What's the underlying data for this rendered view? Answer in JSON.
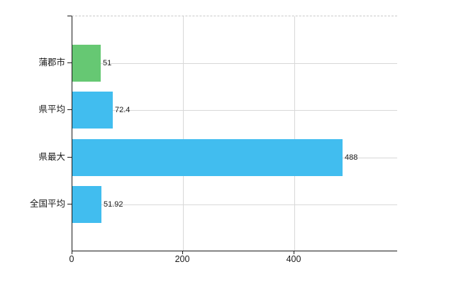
{
  "chart_data": {
    "type": "bar",
    "orientation": "horizontal",
    "title": "",
    "categories": [
      "蒲郡市",
      "県平均",
      "県最大",
      "全国平均"
    ],
    "values": [
      51,
      72.4,
      488,
      51.92
    ],
    "value_labels": [
      "51",
      "72.4",
      "488",
      "51.92"
    ],
    "bar_colors": [
      "#66c873",
      "#41bdef",
      "#41bdef",
      "#41bdef"
    ],
    "xlabel": "",
    "ylabel": "",
    "xlim": [
      0,
      586
    ],
    "x_ticks": [
      0,
      200,
      400
    ],
    "x_tick_labels": [
      "0",
      "200",
      "400"
    ],
    "grid": true,
    "legend": "none"
  },
  "colors": {
    "background": "#ffffff",
    "axis": "#1a1a1a",
    "gridline": "#d8d8d8",
    "top_border_dashed": "#c9c9c9",
    "text": "#1a1a1a",
    "highlight_bar": "#66c873",
    "default_bar": "#41bdef"
  }
}
